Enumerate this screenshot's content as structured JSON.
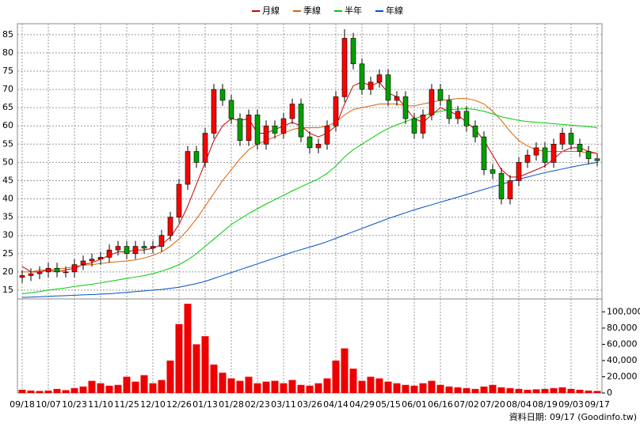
{
  "chart_data": [
    {
      "type": "candlestick",
      "categories": [
        "09/18",
        null,
        null,
        "10/07",
        null,
        null,
        "10/23",
        null,
        null,
        "11/10",
        null,
        null,
        "11/25",
        null,
        null,
        "12/10",
        null,
        null,
        "12/26",
        null,
        null,
        "01/13",
        null,
        null,
        "01/28",
        null,
        null,
        "02/23",
        null,
        null,
        "03/11",
        null,
        null,
        "03/26",
        null,
        null,
        "04/14",
        null,
        null,
        "04/29",
        null,
        null,
        "05/15",
        null,
        null,
        "06/01",
        null,
        null,
        "06/16",
        null,
        null,
        "07/02",
        null,
        null,
        "07/20",
        null,
        null,
        "08/04",
        null,
        null,
        "08/19",
        null,
        null,
        "09/03",
        null,
        null,
        "09/17"
      ],
      "open": [
        18.5,
        19,
        19.5,
        20,
        21,
        20,
        20,
        22,
        23,
        23.5,
        24,
        26,
        27,
        25,
        27,
        26.5,
        27,
        30,
        35,
        44,
        53,
        50,
        58,
        70,
        67,
        62,
        56,
        63,
        55,
        60,
        58,
        62,
        66,
        57,
        54,
        55,
        60,
        68,
        84,
        77,
        70,
        72,
        74,
        67,
        68,
        62,
        58,
        63,
        70,
        67,
        62,
        64,
        60,
        57,
        48,
        47,
        40,
        45,
        50,
        52,
        54,
        50,
        55,
        58,
        55,
        53,
        51
      ],
      "high": [
        20.5,
        21,
        21.5,
        22.5,
        22.5,
        21.5,
        23.5,
        24.5,
        25,
        25.5,
        27.5,
        28.5,
        28.5,
        28.5,
        28.5,
        28.5,
        31.5,
        36.5,
        45.5,
        54.5,
        54.5,
        59.5,
        71.5,
        71.5,
        68.5,
        63.5,
        64.5,
        64.5,
        61.5,
        61.5,
        63.5,
        67.5,
        67.5,
        58.5,
        56.5,
        61.5,
        69.5,
        86.5,
        85.5,
        78.5,
        73.5,
        75.5,
        75.5,
        69.5,
        69.5,
        63.5,
        64.5,
        71.5,
        71.5,
        68.5,
        65.5,
        65.5,
        61.5,
        58.5,
        49.5,
        48.5,
        46.5,
        51.5,
        53.5,
        55.5,
        55.5,
        56.5,
        59.5,
        59.5,
        56.5,
        54.5,
        52.5
      ],
      "low": [
        17,
        17.5,
        18,
        18.5,
        18.5,
        18.5,
        18.5,
        20.5,
        21.5,
        22,
        22.5,
        24.5,
        23.5,
        23.5,
        25,
        25,
        25.5,
        28.5,
        33.5,
        42.5,
        48.5,
        48.5,
        56.5,
        65.5,
        60.5,
        54.5,
        54.5,
        53.5,
        53.5,
        56.5,
        56.5,
        60.5,
        55.5,
        52.5,
        52.5,
        53.5,
        58.5,
        66.5,
        75.5,
        68.5,
        68.5,
        70.5,
        65.5,
        65.5,
        60.5,
        56.5,
        56.5,
        61.5,
        65.5,
        60.5,
        60.5,
        58.5,
        55.5,
        46.5,
        45.5,
        38.5,
        38.5,
        43.5,
        48.5,
        50.5,
        48.5,
        48.5,
        53.5,
        53.5,
        51.5,
        49.5,
        49
      ],
      "close": [
        19,
        19.5,
        20,
        21,
        20,
        20,
        22,
        23,
        23.5,
        24,
        26,
        27,
        25,
        27,
        26.5,
        27,
        30,
        35,
        44,
        53,
        50,
        58,
        70,
        67,
        62,
        56,
        63,
        55,
        60,
        58,
        62,
        66,
        57,
        54,
        55,
        60,
        68,
        84,
        77,
        70,
        72,
        74,
        67,
        68,
        62,
        58,
        63,
        70,
        67,
        62,
        64,
        60,
        57,
        48,
        47,
        40,
        45,
        50,
        52,
        54,
        50,
        55,
        58,
        55,
        53,
        51,
        50.5
      ],
      "up_color": "#ff0000",
      "down_color": "#00a000",
      "series": [
        {
          "name": "月線",
          "color": "#cc0000",
          "values": [
            21.5,
            20,
            20,
            20.5,
            20,
            20.5,
            21,
            22,
            22.5,
            23.5,
            24.5,
            25.5,
            25.5,
            26,
            26,
            26.5,
            27.5,
            29.5,
            33,
            38,
            44,
            50,
            56,
            60,
            62,
            61.5,
            62,
            58,
            58,
            59,
            60,
            61,
            60,
            58,
            57,
            58,
            60,
            66,
            71,
            72,
            71,
            72,
            69,
            68,
            65,
            62,
            61,
            63,
            65,
            64,
            63,
            61,
            59,
            56,
            52,
            48,
            46,
            46,
            47,
            48,
            49,
            51,
            53,
            54,
            54,
            53,
            52.5
          ]
        },
        {
          "name": "季線",
          "color": "#e06000",
          "values": [
            20,
            20,
            20.5,
            20.5,
            20.8,
            21,
            21.5,
            21.8,
            22,
            22.3,
            22.6,
            22.8,
            23,
            23.3,
            23.8,
            24.5,
            25.5,
            27,
            29,
            31.5,
            34.5,
            38,
            41.5,
            45,
            48,
            51,
            53.5,
            55,
            56,
            57,
            58,
            59,
            59.5,
            59.5,
            59.5,
            60,
            61,
            63,
            64.5,
            65,
            65.5,
            66,
            66,
            66,
            65.5,
            65.5,
            66,
            66.5,
            67,
            67.2,
            67.5,
            67.5,
            67,
            66,
            64,
            61.5,
            58.5,
            56,
            54.5,
            53.5,
            53,
            53,
            53,
            53,
            53,
            52.5,
            52.5
          ]
        },
        {
          "name": "半年",
          "color": "#00cc00",
          "values": [
            14,
            14.3,
            14.6,
            15,
            15.3,
            15.6,
            16,
            16.3,
            16.6,
            17,
            17.4,
            17.8,
            18.2,
            18.6,
            19,
            19.5,
            20.2,
            21,
            22,
            23.3,
            25,
            27,
            29,
            31,
            33,
            34.5,
            36,
            37.3,
            38.6,
            39.8,
            41,
            42.2,
            43.3,
            44.4,
            45.5,
            47,
            49,
            51.5,
            53.5,
            55,
            56.5,
            58,
            59.3,
            60.3,
            61.2,
            62,
            62.8,
            63.5,
            64,
            64.4,
            64.6,
            64.7,
            64.5,
            64,
            63.3,
            62.5,
            62,
            61.5,
            61.2,
            61,
            60.8,
            60.6,
            60.4,
            60.2,
            60,
            59.8,
            59.5
          ]
        },
        {
          "name": "年線",
          "color": "#0050c8",
          "values": [
            13,
            13.1,
            13.2,
            13.3,
            13.4,
            13.5,
            13.6,
            13.7,
            13.8,
            13.9,
            14,
            14.2,
            14.4,
            14.6,
            14.8,
            15,
            15.2,
            15.5,
            15.8,
            16.3,
            16.8,
            17.4,
            18.2,
            19,
            19.8,
            20.6,
            21.4,
            22.2,
            23,
            23.8,
            24.6,
            25.4,
            26.1,
            26.8,
            27.5,
            28.3,
            29.2,
            30.1,
            31,
            31.9,
            32.8,
            33.7,
            34.6,
            35.4,
            36.2,
            37,
            37.7,
            38.4,
            39.1,
            39.8,
            40.5,
            41.2,
            41.9,
            42.6,
            43.3,
            44,
            44.7,
            45.4,
            46,
            46.6,
            47.2,
            47.7,
            48.2,
            48.7,
            49.2,
            49.6,
            50
          ]
        }
      ],
      "ylim": [
        12.6,
        88
      ],
      "yticks": [
        15,
        20,
        25,
        30,
        35,
        40,
        45,
        50,
        55,
        60,
        65,
        70,
        75,
        80,
        85
      ],
      "grid": true
    },
    {
      "type": "bar",
      "color": "#ee0000",
      "values": [
        4000,
        3000,
        2500,
        3000,
        5000,
        3500,
        6000,
        8000,
        15000,
        12000,
        9000,
        10000,
        20000,
        14000,
        22000,
        12000,
        16000,
        40000,
        85000,
        110000,
        60000,
        70000,
        35000,
        25000,
        18000,
        15000,
        20000,
        12000,
        14000,
        15000,
        12000,
        16000,
        10000,
        9000,
        12000,
        18000,
        40000,
        55000,
        30000,
        15000,
        20000,
        18000,
        14000,
        12000,
        10000,
        9000,
        12000,
        15000,
        10000,
        8000,
        7000,
        6000,
        5000,
        8000,
        10000,
        7000,
        6000,
        5000,
        4000,
        4500,
        5000,
        6000,
        7000,
        5000,
        4000,
        3000,
        2500
      ],
      "ylim": [
        0,
        116000
      ],
      "yticks": [
        0,
        {
          "value": 20000,
          "label": "20,000"
        },
        {
          "value": 40000,
          "label": "40,000"
        },
        {
          "value": 60000,
          "label": "60,000"
        },
        {
          "value": 80000,
          "label": "80,000"
        },
        {
          "value": 100000,
          "label": "100,000"
        }
      ],
      "grid": true,
      "footer": "資料日期: 09/17  (Goodinfo.tw)"
    }
  ]
}
